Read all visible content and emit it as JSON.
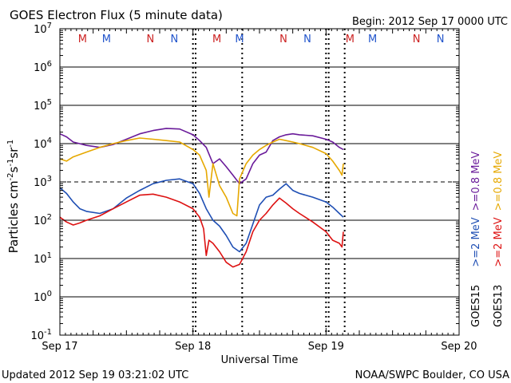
{
  "chart_data": {
    "type": "line",
    "title": "GOES Electron Flux (5 minute data)",
    "begin_label": "Begin: 2012 Sep 17 0000 UTC",
    "ylabel_parts": {
      "prefix": "Particles cm",
      "sup1": "-2",
      "s": "s",
      "sup2": "-1",
      "sr": "sr",
      "sup3": "-1"
    },
    "xlabel": "Universal Time",
    "updated": "Updated 2012 Sep 19 03:21:02 UTC",
    "credit": "NOAA/SWPC Boulder, CO USA",
    "y_scale": "log",
    "ylim": [
      0.1,
      10000000
    ],
    "y_ticks": [
      {
        "base": "10",
        "exp": "7"
      },
      {
        "base": "10",
        "exp": "6"
      },
      {
        "base": "10",
        "exp": "5"
      },
      {
        "base": "10",
        "exp": "4"
      },
      {
        "base": "10",
        "exp": "3"
      },
      {
        "base": "10",
        "exp": "2"
      },
      {
        "base": "10",
        "exp": "1"
      },
      {
        "base": "10",
        "exp": "0"
      },
      {
        "base": "10",
        "exp": "-1"
      }
    ],
    "threshold_value": 1000,
    "x_unit": "days since Sep 17 00:00 UTC",
    "xlim": [
      0,
      3
    ],
    "x_ticks": [
      "Sep 17",
      "Sep 18",
      "Sep 19",
      "Sep 20"
    ],
    "day_markers": [
      1,
      2
    ],
    "satellite_markers": [
      {
        "label": "M",
        "x": 0.17,
        "color": "#cc2222"
      },
      {
        "label": "M",
        "x": 0.35,
        "color": "#2255cc"
      },
      {
        "label": "N",
        "x": 0.68,
        "color": "#cc2222"
      },
      {
        "label": "N",
        "x": 0.86,
        "color": "#2255cc"
      },
      {
        "label": "M",
        "x": 1.18,
        "color": "#cc2222"
      },
      {
        "label": "M",
        "x": 1.35,
        "color": "#2255cc"
      },
      {
        "label": "N",
        "x": 1.68,
        "color": "#cc2222"
      },
      {
        "label": "N",
        "x": 1.86,
        "color": "#2255cc"
      },
      {
        "label": "M",
        "x": 2.18,
        "color": "#cc2222"
      },
      {
        "label": "M",
        "x": 2.35,
        "color": "#2255cc"
      },
      {
        "label": "N",
        "x": 2.68,
        "color": "#cc2222"
      },
      {
        "label": "N",
        "x": 2.86,
        "color": "#2255cc"
      }
    ],
    "satellite_ticks": [
      1.02,
      1.37,
      2.02,
      2.14
    ],
    "legend_cols": [
      {
        "sat": "GOES15",
        "items": [
          {
            "text": ">=0.8 MeV",
            "color": "#6a1b9a"
          },
          {
            "text": ">=2 MeV",
            "color": "#1f4fb4"
          }
        ]
      },
      {
        "sat": "GOES13",
        "items": [
          {
            "text": ">=0.8 MeV",
            "color": "#e6a800"
          },
          {
            "text": ">=2 MeV",
            "color": "#dd1111"
          }
        ]
      }
    ],
    "series": [
      {
        "color": "#6a1b9a",
        "x": [
          0,
          0.05,
          0.1,
          0.2,
          0.3,
          0.4,
          0.5,
          0.6,
          0.7,
          0.8,
          0.9,
          1.0,
          1.05,
          1.1,
          1.15,
          1.2,
          1.25,
          1.3,
          1.35,
          1.4,
          1.45,
          1.5,
          1.55,
          1.6,
          1.65,
          1.7,
          1.75,
          1.8,
          1.9,
          2.0,
          2.05,
          2.1,
          2.13
        ],
        "y": [
          18000,
          15000,
          11000,
          9000,
          8000,
          9500,
          13000,
          18000,
          22000,
          25000,
          24000,
          17000,
          12000,
          8000,
          3000,
          4000,
          2500,
          1500,
          900,
          1200,
          3000,
          5000,
          6000,
          12000,
          15000,
          17000,
          18000,
          17000,
          16000,
          13000,
          11000,
          8000,
          7000
        ]
      },
      {
        "color": "#e6a800",
        "x": [
          0,
          0.05,
          0.1,
          0.2,
          0.3,
          0.4,
          0.5,
          0.6,
          0.7,
          0.8,
          0.9,
          1.0,
          1.05,
          1.1,
          1.12,
          1.15,
          1.2,
          1.25,
          1.3,
          1.33,
          1.35,
          1.4,
          1.45,
          1.5,
          1.55,
          1.6,
          1.65,
          1.7,
          1.75,
          1.8,
          1.9,
          2.0,
          2.05,
          2.1,
          2.12,
          2.13
        ],
        "y": [
          4000,
          3500,
          4500,
          6000,
          8000,
          10000,
          12000,
          14000,
          13000,
          12000,
          11000,
          7000,
          5000,
          2000,
          400,
          3000,
          800,
          400,
          150,
          130,
          1200,
          3000,
          5000,
          7000,
          9000,
          11000,
          13000,
          12000,
          11000,
          10000,
          8000,
          5500,
          3500,
          2000,
          1500,
          3000
        ]
      },
      {
        "color": "#1f4fb4",
        "x": [
          0,
          0.05,
          0.1,
          0.15,
          0.2,
          0.3,
          0.4,
          0.5,
          0.6,
          0.7,
          0.8,
          0.9,
          1.0,
          1.05,
          1.1,
          1.15,
          1.2,
          1.25,
          1.3,
          1.35,
          1.4,
          1.45,
          1.5,
          1.55,
          1.6,
          1.65,
          1.7,
          1.75,
          1.8,
          1.9,
          2.0,
          2.05,
          2.1,
          2.13
        ],
        "y": [
          700,
          500,
          300,
          200,
          170,
          150,
          200,
          380,
          600,
          900,
          1100,
          1200,
          900,
          500,
          200,
          100,
          70,
          40,
          20,
          15,
          25,
          80,
          250,
          400,
          450,
          650,
          900,
          600,
          500,
          400,
          300,
          220,
          150,
          120
        ]
      },
      {
        "color": "#dd1111",
        "x": [
          0,
          0.05,
          0.1,
          0.15,
          0.2,
          0.3,
          0.4,
          0.5,
          0.6,
          0.7,
          0.8,
          0.9,
          1.0,
          1.05,
          1.08,
          1.1,
          1.12,
          1.15,
          1.2,
          1.25,
          1.3,
          1.35,
          1.4,
          1.45,
          1.5,
          1.55,
          1.6,
          1.65,
          1.7,
          1.75,
          1.8,
          1.9,
          2.0,
          2.05,
          2.1,
          2.12,
          2.13
        ],
        "y": [
          120,
          90,
          75,
          85,
          100,
          130,
          200,
          300,
          450,
          480,
          400,
          300,
          200,
          120,
          60,
          12,
          30,
          25,
          15,
          8,
          6,
          7,
          15,
          50,
          100,
          150,
          250,
          380,
          280,
          200,
          150,
          90,
          50,
          30,
          25,
          20,
          50
        ]
      }
    ]
  }
}
